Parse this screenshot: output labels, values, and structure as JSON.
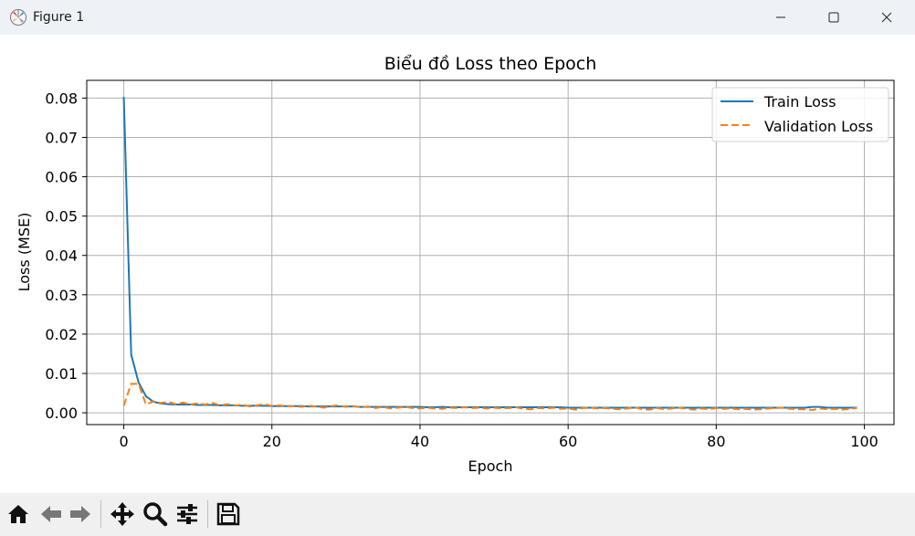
{
  "window": {
    "title": "Figure 1",
    "minimize_icon": "minimize-icon",
    "maximize_icon": "maximize-icon",
    "close_icon": "close-icon"
  },
  "toolbar": {
    "buttons": [
      {
        "name": "home",
        "icon": "home-icon"
      },
      {
        "name": "back",
        "icon": "arrow-left-icon"
      },
      {
        "name": "forward",
        "icon": "arrow-right-icon"
      },
      {
        "name": "pan",
        "icon": "move-icon"
      },
      {
        "name": "zoom",
        "icon": "magnifier-icon"
      },
      {
        "name": "configure",
        "icon": "sliders-icon"
      },
      {
        "name": "save",
        "icon": "floppy-disk-icon"
      }
    ]
  },
  "colors": {
    "train": "#1f77b4",
    "validation": "#ff7f0e",
    "grid": "#b0b0b0"
  },
  "chart_data": {
    "type": "line",
    "title": "Biểu đồ Loss theo Epoch",
    "xlabel": "Epoch",
    "ylabel": "Loss (MSE)",
    "xlim": [
      -5,
      104
    ],
    "ylim": [
      -0.003,
      0.0845
    ],
    "xticks": [
      0,
      20,
      40,
      60,
      80,
      100
    ],
    "xtick_labels": [
      "0",
      "20",
      "40",
      "60",
      "80",
      "100"
    ],
    "yticks": [
      0.0,
      0.01,
      0.02,
      0.03,
      0.04,
      0.05,
      0.06,
      0.07,
      0.08
    ],
    "ytick_labels": [
      "0.00",
      "0.01",
      "0.02",
      "0.03",
      "0.04",
      "0.05",
      "0.06",
      "0.07",
      "0.08"
    ],
    "grid": true,
    "legend_position": "top-right",
    "series": [
      {
        "name": "Train Loss",
        "style": "solid",
        "values": [
          0.0803,
          0.0148,
          0.0077,
          0.0042,
          0.0028,
          0.0024,
          0.0022,
          0.0021,
          0.0021,
          0.0021,
          0.002,
          0.002,
          0.002,
          0.0019,
          0.0019,
          0.0019,
          0.0018,
          0.0018,
          0.0018,
          0.0018,
          0.0017,
          0.0017,
          0.0017,
          0.0017,
          0.0017,
          0.0016,
          0.0016,
          0.0016,
          0.0016,
          0.0016,
          0.0016,
          0.0016,
          0.0015,
          0.0015,
          0.0015,
          0.0015,
          0.0015,
          0.0015,
          0.0015,
          0.0015,
          0.0015,
          0.0014,
          0.0014,
          0.0015,
          0.0014,
          0.0014,
          0.0014,
          0.0014,
          0.0014,
          0.0014,
          0.0014,
          0.0014,
          0.0014,
          0.0014,
          0.0014,
          0.0014,
          0.0014,
          0.0014,
          0.0014,
          0.0014,
          0.0013,
          0.0013,
          0.0013,
          0.0013,
          0.0013,
          0.0013,
          0.0013,
          0.0013,
          0.0013,
          0.0013,
          0.0013,
          0.0013,
          0.0013,
          0.0013,
          0.0013,
          0.0013,
          0.0013,
          0.0013,
          0.0013,
          0.0013,
          0.0013,
          0.0013,
          0.0013,
          0.0013,
          0.0013,
          0.0013,
          0.0013,
          0.0013,
          0.0013,
          0.0013,
          0.0013,
          0.0013,
          0.0013,
          0.0015,
          0.0015,
          0.0013,
          0.0013,
          0.0013,
          0.0013,
          0.0013
        ]
      },
      {
        "name": "Validation Loss",
        "style": "dashed",
        "values": [
          0.0018,
          0.0074,
          0.0073,
          0.0021,
          0.0029,
          0.0025,
          0.0028,
          0.0022,
          0.0026,
          0.0021,
          0.0024,
          0.0021,
          0.0025,
          0.0019,
          0.0022,
          0.0018,
          0.0021,
          0.0016,
          0.0019,
          0.0022,
          0.0017,
          0.0019,
          0.0016,
          0.0017,
          0.0015,
          0.0018,
          0.0016,
          0.0013,
          0.0017,
          0.0019,
          0.0015,
          0.0017,
          0.0014,
          0.0016,
          0.0012,
          0.0015,
          0.0011,
          0.0013,
          0.0015,
          0.0012,
          0.0011,
          0.0013,
          0.0011,
          0.001,
          0.0013,
          0.0012,
          0.0014,
          0.0012,
          0.0013,
          0.0011,
          0.0013,
          0.0011,
          0.0012,
          0.0014,
          0.001,
          0.0009,
          0.0012,
          0.0011,
          0.0013,
          0.001,
          0.0011,
          0.0008,
          0.0012,
          0.0013,
          0.0011,
          0.0012,
          0.001,
          0.0009,
          0.0011,
          0.0014,
          0.0009,
          0.0008,
          0.0012,
          0.0009,
          0.0011,
          0.0013,
          0.001,
          0.0008,
          0.0011,
          0.0009,
          0.0012,
          0.001,
          0.0011,
          0.0009,
          0.001,
          0.0008,
          0.0009,
          0.0011,
          0.0012,
          0.0013,
          0.001,
          0.0009,
          0.0009,
          0.0007,
          0.0011,
          0.0009,
          0.001,
          0.0008,
          0.001,
          0.0012
        ]
      }
    ]
  }
}
